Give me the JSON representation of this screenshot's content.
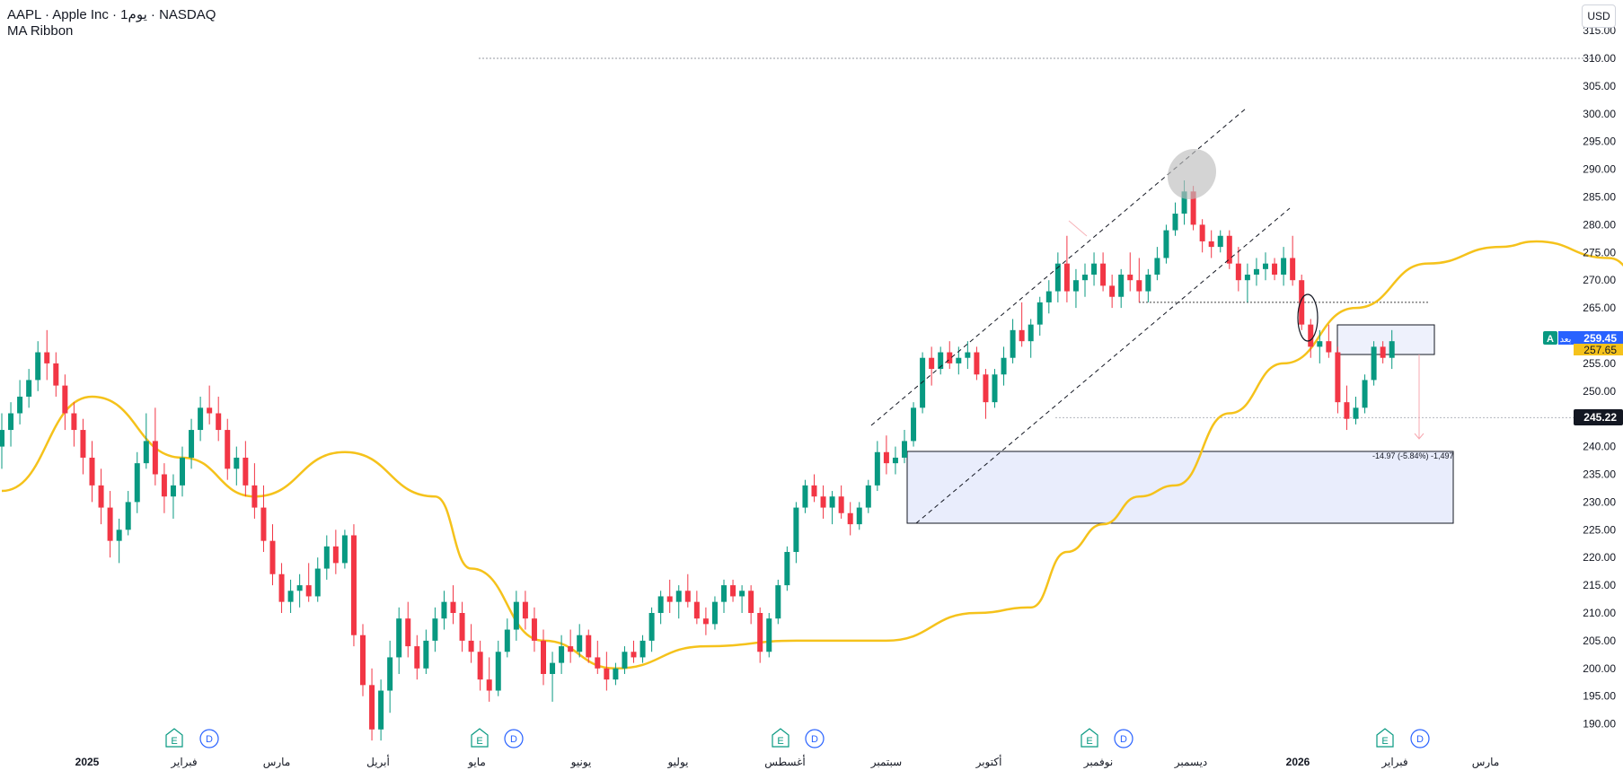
{
  "header": {
    "symbol": "AAPL · Apple Inc · 1يوم · NASDAQ",
    "indicator": "MA Ribbon",
    "currency": "USD"
  },
  "colors": {
    "up": "#089981",
    "down": "#f23645",
    "ma": "#f5c21b",
    "zone_fill": "#e9edfc",
    "grid_dot": "#9598a1",
    "axis_text": "#131722",
    "event_earnings": "#089981",
    "event_dividend": "#2962ff"
  },
  "price_axis": {
    "ticks": [
      "315.00",
      "310.00",
      "305.00",
      "300.00",
      "295.00",
      "290.00",
      "285.00",
      "280.00",
      "275.00",
      "270.00",
      "265.00",
      "260.00",
      "255.00",
      "250.00",
      "245.00",
      "240.00",
      "235.00",
      "230.00",
      "225.00",
      "220.00",
      "215.00",
      "210.00",
      "205.00",
      "200.00",
      "195.00",
      "190.00"
    ],
    "last_price": "259.45",
    "ma_price": "257.65",
    "crosshair_price": "245.22",
    "symbol_badge": "A",
    "badge_tag": "بعد"
  },
  "time_axis": {
    "labels": [
      "2025",
      "فبراير",
      "مارس",
      "أبريل",
      "مايو",
      "يونيو",
      "يوليو",
      "أغسطس",
      "سبتمبر",
      "أكتوبر",
      "نوفمبر",
      "ديسمبر",
      "2026",
      "فبراير",
      "مارس"
    ]
  },
  "events": [
    {
      "type": "earnings",
      "label": "E"
    },
    {
      "type": "dividend",
      "label": "D"
    },
    {
      "type": "earnings",
      "label": "E"
    },
    {
      "type": "dividend",
      "label": "D"
    },
    {
      "type": "earnings",
      "label": "E"
    },
    {
      "type": "dividend",
      "label": "D"
    },
    {
      "type": "earnings",
      "label": "E"
    },
    {
      "type": "dividend",
      "label": "D"
    },
    {
      "type": "earnings",
      "label": "E"
    },
    {
      "type": "dividend",
      "label": "D"
    }
  ],
  "annotations": {
    "measure_label": "-14.97 (-5.84%) -1,497"
  },
  "chart_data": {
    "type": "candlestick",
    "title": "AAPL · Apple Inc · 1يوم · NASDAQ",
    "y_range": [
      187,
      317
    ],
    "grid": false,
    "candles": [
      [
        240,
        246,
        236,
        243
      ],
      [
        243,
        248,
        240,
        246
      ],
      [
        246,
        252,
        244,
        249
      ],
      [
        249,
        254,
        247,
        252
      ],
      [
        252,
        259,
        250,
        257
      ],
      [
        257,
        261,
        252,
        255
      ],
      [
        255,
        257,
        249,
        251
      ],
      [
        251,
        253,
        243,
        246
      ],
      [
        246,
        248,
        240,
        243
      ],
      [
        243,
        245,
        235,
        238
      ],
      [
        238,
        241,
        230,
        233
      ],
      [
        233,
        236,
        226,
        229
      ],
      [
        229,
        232,
        220,
        223
      ],
      [
        223,
        227,
        219,
        225
      ],
      [
        225,
        232,
        224,
        230
      ],
      [
        230,
        239,
        228,
        237
      ],
      [
        237,
        246,
        236,
        241
      ],
      [
        241,
        247,
        233,
        235
      ],
      [
        235,
        237,
        228,
        231
      ],
      [
        231,
        235,
        227,
        233
      ],
      [
        233,
        240,
        231,
        238
      ],
      [
        238,
        245,
        236,
        243
      ],
      [
        243,
        249,
        241,
        247
      ],
      [
        247,
        251,
        244,
        246
      ],
      [
        246,
        249,
        241,
        243
      ],
      [
        243,
        245,
        234,
        236
      ],
      [
        236,
        240,
        233,
        238
      ],
      [
        238,
        241,
        231,
        233
      ],
      [
        233,
        237,
        227,
        229
      ],
      [
        229,
        233,
        221,
        223
      ],
      [
        223,
        226,
        215,
        217
      ],
      [
        217,
        219,
        210,
        212
      ],
      [
        212,
        216,
        210,
        214
      ],
      [
        214,
        217,
        211,
        215
      ],
      [
        215,
        219,
        212,
        213
      ],
      [
        213,
        220,
        212,
        218
      ],
      [
        218,
        224,
        216,
        222
      ],
      [
        222,
        225,
        217,
        219
      ],
      [
        219,
        225,
        218,
        224
      ],
      [
        224,
        226,
        204,
        206
      ],
      [
        206,
        208,
        195,
        197
      ],
      [
        197,
        200,
        187,
        189
      ],
      [
        189,
        198,
        187,
        196
      ],
      [
        196,
        205,
        192,
        202
      ],
      [
        202,
        211,
        199,
        209
      ],
      [
        209,
        212,
        202,
        204
      ],
      [
        204,
        206,
        198,
        200
      ],
      [
        200,
        207,
        199,
        205
      ],
      [
        205,
        211,
        203,
        209
      ],
      [
        209,
        214,
        207,
        212
      ],
      [
        212,
        215,
        208,
        210
      ],
      [
        210,
        212,
        203,
        205
      ],
      [
        205,
        208,
        201,
        203
      ],
      [
        203,
        205,
        196,
        198
      ],
      [
        198,
        202,
        194,
        196
      ],
      [
        196,
        205,
        195,
        203
      ],
      [
        203,
        209,
        202,
        207
      ],
      [
        207,
        214,
        205,
        212
      ],
      [
        212,
        214,
        207,
        209
      ],
      [
        209,
        211,
        203,
        205
      ],
      [
        205,
        207,
        197,
        199
      ],
      [
        199,
        203,
        194,
        201
      ],
      [
        201,
        206,
        199,
        204
      ],
      [
        204,
        207,
        201,
        203
      ],
      [
        203,
        208,
        202,
        206
      ],
      [
        206,
        207,
        201,
        202
      ],
      [
        202,
        205,
        199,
        200
      ],
      [
        200,
        203,
        196,
        198
      ],
      [
        198,
        201,
        197,
        200
      ],
      [
        200,
        204,
        199,
        203
      ],
      [
        203,
        205,
        201,
        202
      ],
      [
        202,
        206,
        201,
        205
      ],
      [
        205,
        211,
        203,
        210
      ],
      [
        210,
        214,
        208,
        213
      ],
      [
        213,
        216,
        210,
        212
      ],
      [
        212,
        215,
        209,
        214
      ],
      [
        214,
        217,
        211,
        212
      ],
      [
        212,
        214,
        208,
        209
      ],
      [
        209,
        211,
        206,
        208
      ],
      [
        208,
        213,
        207,
        212
      ],
      [
        212,
        216,
        210,
        215
      ],
      [
        215,
        216,
        212,
        213
      ],
      [
        213,
        215,
        210,
        214
      ],
      [
        214,
        215,
        208,
        210
      ],
      [
        210,
        211,
        201,
        203
      ],
      [
        203,
        210,
        202,
        209
      ],
      [
        209,
        216,
        208,
        215
      ],
      [
        215,
        222,
        214,
        221
      ],
      [
        221,
        230,
        219,
        229
      ],
      [
        229,
        234,
        228,
        233
      ],
      [
        233,
        235,
        230,
        231
      ],
      [
        231,
        233,
        227,
        229
      ],
      [
        229,
        232,
        226,
        231
      ],
      [
        231,
        233,
        227,
        228
      ],
      [
        228,
        230,
        224,
        226
      ],
      [
        226,
        230,
        225,
        229
      ],
      [
        229,
        234,
        228,
        233
      ],
      [
        233,
        241,
        232,
        239
      ],
      [
        239,
        242,
        235,
        237
      ],
      [
        237,
        240,
        235,
        238
      ],
      [
        238,
        243,
        237,
        241
      ],
      [
        241,
        248,
        240,
        247
      ],
      [
        247,
        257,
        246,
        256
      ],
      [
        256,
        258,
        251,
        254
      ],
      [
        254,
        258,
        253,
        257
      ],
      [
        257,
        259,
        254,
        255
      ],
      [
        255,
        258,
        253,
        256
      ],
      [
        256,
        259,
        254,
        257
      ],
      [
        257,
        258,
        252,
        253
      ],
      [
        253,
        254,
        245,
        248
      ],
      [
        248,
        254,
        247,
        253
      ],
      [
        253,
        258,
        251,
        256
      ],
      [
        256,
        263,
        255,
        261
      ],
      [
        261,
        266,
        258,
        259
      ],
      [
        259,
        263,
        256,
        262
      ],
      [
        262,
        267,
        260,
        266
      ],
      [
        266,
        270,
        264,
        268
      ],
      [
        268,
        275,
        266,
        273
      ],
      [
        273,
        278,
        266,
        268
      ],
      [
        268,
        272,
        265,
        270
      ],
      [
        270,
        273,
        267,
        271
      ],
      [
        271,
        275,
        269,
        273
      ],
      [
        273,
        275,
        268,
        269
      ],
      [
        269,
        271,
        265,
        267
      ],
      [
        267,
        272,
        265,
        271
      ],
      [
        271,
        275,
        268,
        270
      ],
      [
        270,
        274,
        266,
        268
      ],
      [
        268,
        272,
        266,
        271
      ],
      [
        271,
        276,
        270,
        274
      ],
      [
        274,
        280,
        273,
        279
      ],
      [
        279,
        284,
        278,
        282
      ],
      [
        282,
        288,
        280,
        286
      ],
      [
        286,
        287,
        279,
        280
      ],
      [
        280,
        281,
        275,
        277
      ],
      [
        277,
        279,
        274,
        276
      ],
      [
        276,
        279,
        275,
        278
      ],
      [
        278,
        279,
        272,
        273
      ],
      [
        273,
        276,
        268,
        270
      ],
      [
        270,
        273,
        266,
        271
      ],
      [
        271,
        274,
        269,
        272
      ],
      [
        272,
        275,
        270,
        273
      ],
      [
        273,
        274,
        270,
        271
      ],
      [
        271,
        276,
        269,
        274
      ],
      [
        274,
        278,
        269,
        270
      ],
      [
        270,
        271,
        261,
        262
      ],
      [
        262,
        263,
        256,
        258
      ],
      [
        258,
        261,
        255,
        259
      ],
      [
        259,
        262,
        256,
        257
      ],
      [
        257,
        258,
        246,
        248
      ],
      [
        248,
        251,
        243,
        245
      ],
      [
        245,
        249,
        244,
        247
      ],
      [
        247,
        253,
        246,
        252
      ],
      [
        252,
        259,
        251,
        258
      ],
      [
        258,
        259,
        255,
        256
      ],
      [
        256,
        261,
        254,
        259
      ]
    ],
    "ma_ribbon": [
      [
        0,
        232
      ],
      [
        10,
        249
      ],
      [
        20,
        238
      ],
      [
        28,
        231
      ],
      [
        38,
        239
      ],
      [
        48,
        231
      ],
      [
        52,
        218
      ],
      [
        60,
        205
      ],
      [
        68,
        200
      ],
      [
        78,
        204
      ],
      [
        88,
        205
      ],
      [
        98,
        205
      ],
      [
        108,
        210
      ],
      [
        114,
        211
      ],
      [
        118,
        221
      ],
      [
        122,
        226
      ],
      [
        126,
        231
      ],
      [
        130,
        233
      ],
      [
        136,
        246
      ],
      [
        142,
        255
      ],
      [
        150,
        265
      ],
      [
        158,
        273
      ],
      [
        166,
        276
      ],
      [
        170,
        277
      ],
      [
        178,
        274
      ],
      [
        182,
        270
      ],
      [
        186,
        263
      ],
      [
        190,
        258
      ]
    ],
    "levels": [
      {
        "name": "dotted-310",
        "value": 310
      },
      {
        "name": "dotted-266",
        "value": 266
      }
    ]
  }
}
